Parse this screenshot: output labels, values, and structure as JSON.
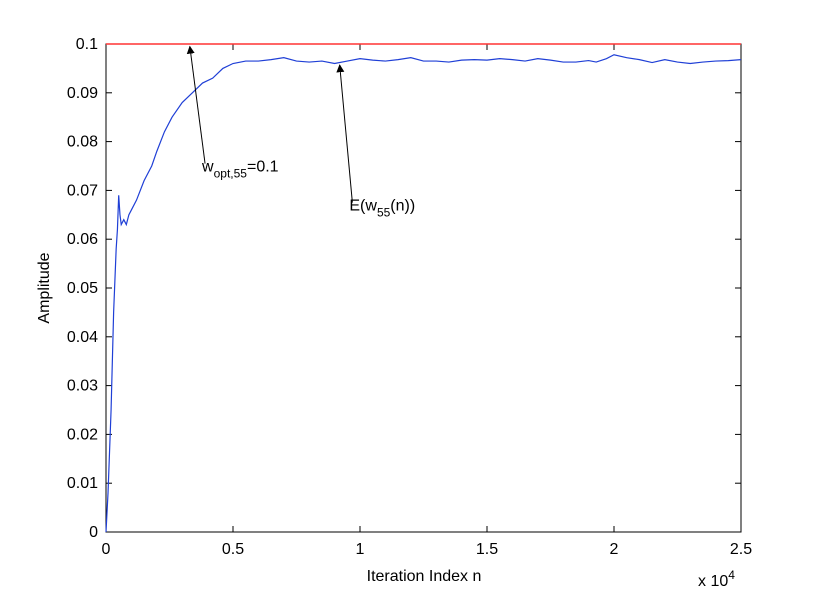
{
  "chart_data": {
    "type": "line",
    "title": "",
    "xlabel": "Iteration Index n",
    "ylabel": "Amplitude",
    "x_exponent_label": "x 10",
    "x_exponent_power": "4",
    "xlim": [
      0,
      25000
    ],
    "ylim": [
      0,
      0.1
    ],
    "xtick_values": [
      0,
      5000,
      10000,
      15000,
      20000,
      25000
    ],
    "xtick_labels": [
      "0",
      "0.5",
      "1",
      "1.5",
      "2",
      "2.5"
    ],
    "ytick_values": [
      0,
      0.01,
      0.02,
      0.03,
      0.04,
      0.05,
      0.06,
      0.07,
      0.08,
      0.09,
      0.1
    ],
    "ytick_labels": [
      "0",
      "0.01",
      "0.02",
      "0.03",
      "0.04",
      "0.05",
      "0.06",
      "0.07",
      "0.08",
      "0.09",
      "0.1"
    ],
    "grid": false,
    "colors": {
      "optimal": "#ff3333",
      "estimate": "#1f3fd6"
    },
    "series": [
      {
        "label_main": "E(w",
        "label_sub": "55",
        "label_tail": "(n))",
        "x": [
          0,
          80,
          200,
          300,
          400,
          450,
          500,
          550,
          600,
          700,
          800,
          900,
          1000,
          1200,
          1500,
          1800,
          2000,
          2300,
          2600,
          3000,
          3400,
          3800,
          4200,
          4600,
          5000,
          5500,
          6000,
          6500,
          7000,
          7500,
          8000,
          8500,
          9000,
          9500,
          10000,
          10500,
          11000,
          11500,
          12000,
          12500,
          13000,
          13500,
          14000,
          14500,
          15000,
          15500,
          16000,
          16500,
          17000,
          17500,
          18000,
          18500,
          19000,
          19300,
          19700,
          20000,
          20500,
          21000,
          21500,
          22000,
          22500,
          23000,
          23500,
          24000,
          24500,
          25000
        ],
        "y": [
          0,
          0.008,
          0.025,
          0.045,
          0.058,
          0.062,
          0.069,
          0.065,
          0.063,
          0.064,
          0.063,
          0.065,
          0.066,
          0.068,
          0.072,
          0.075,
          0.078,
          0.082,
          0.085,
          0.088,
          0.09,
          0.092,
          0.093,
          0.095,
          0.096,
          0.0965,
          0.0965,
          0.0968,
          0.0972,
          0.0965,
          0.0963,
          0.0965,
          0.096,
          0.0965,
          0.097,
          0.0967,
          0.0965,
          0.0968,
          0.0972,
          0.0965,
          0.0965,
          0.0963,
          0.0967,
          0.0968,
          0.0967,
          0.097,
          0.0968,
          0.0965,
          0.097,
          0.0967,
          0.0963,
          0.0963,
          0.0966,
          0.0963,
          0.097,
          0.0978,
          0.0972,
          0.0968,
          0.0962,
          0.0968,
          0.0963,
          0.096,
          0.0963,
          0.0965,
          0.0966,
          0.0968
        ]
      },
      {
        "label_main": "w",
        "label_sub": "opt,55",
        "label_tail": "=0.1",
        "x": [
          0,
          25000
        ],
        "y": [
          0.1,
          0.1
        ]
      }
    ],
    "annotations": [
      {
        "id": "optimal",
        "text_x": 3900,
        "text_y": 0.0755,
        "arrow_tip_x": 3300,
        "arrow_tip_y": 0.0995
      },
      {
        "id": "estimate",
        "text_x": 9700,
        "text_y": 0.0675,
        "arrow_tip_x": 9200,
        "arrow_tip_y": 0.0957
      }
    ]
  }
}
